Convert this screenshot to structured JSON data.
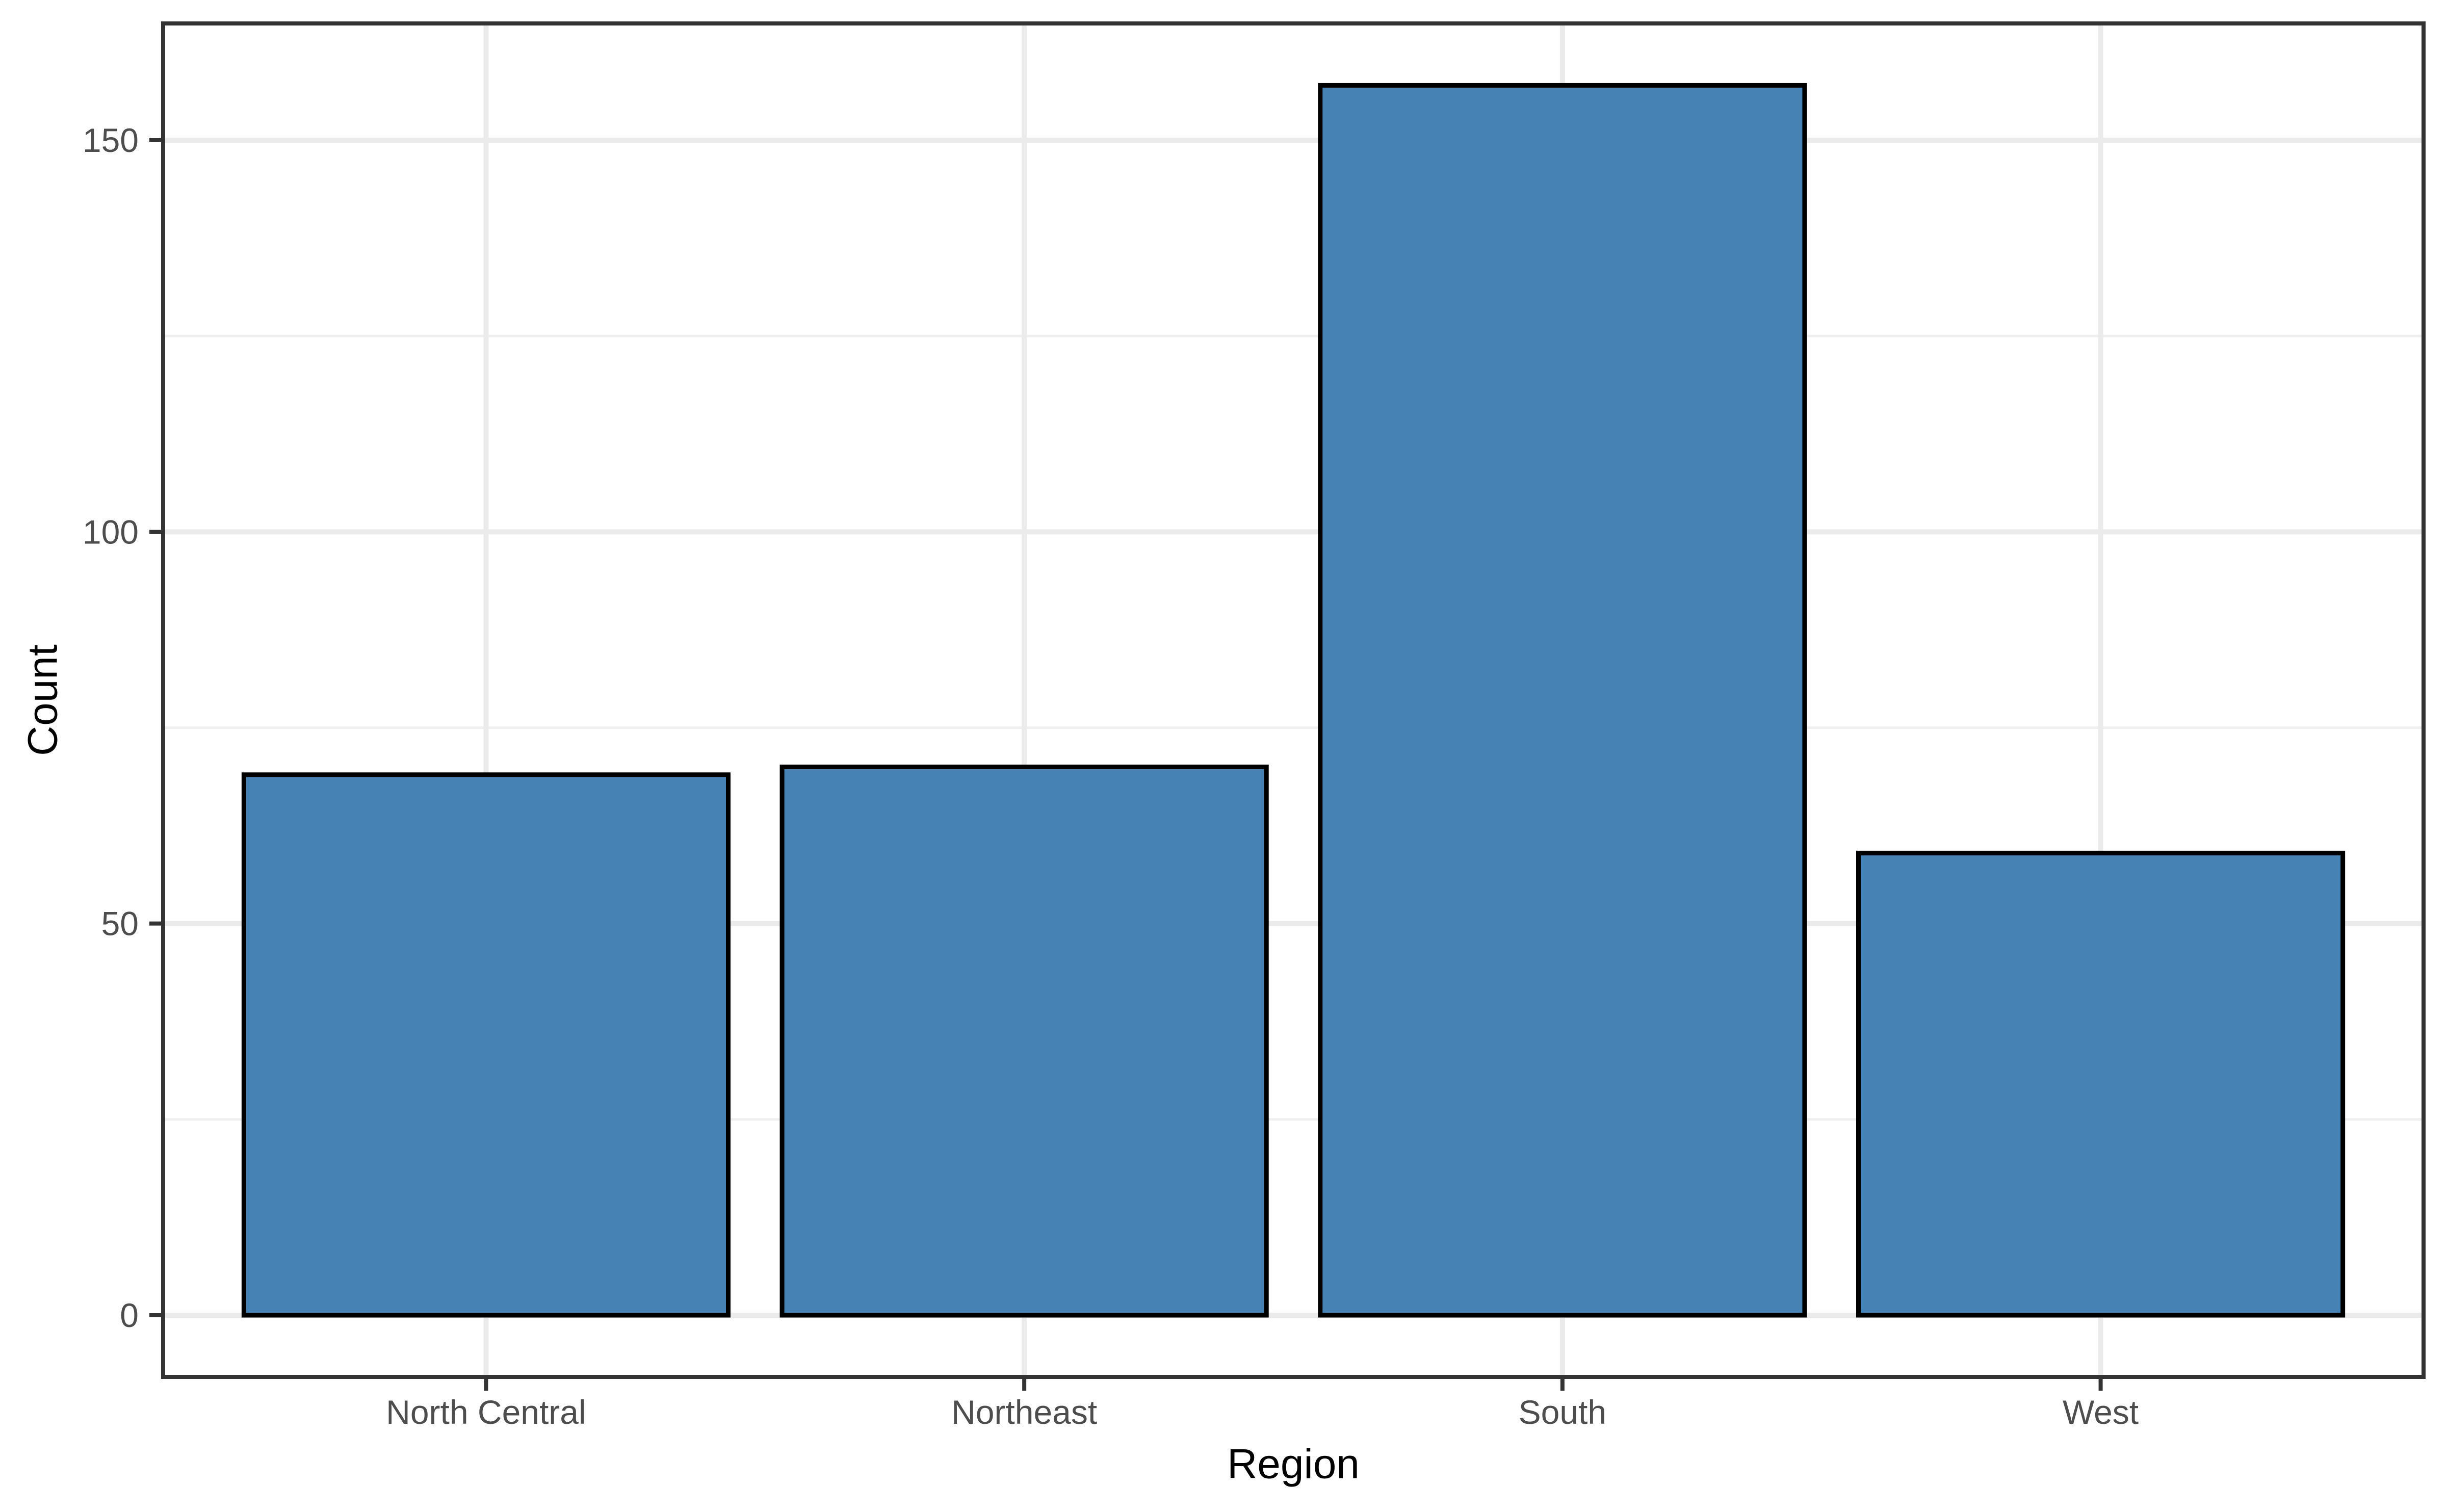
{
  "chart_data": {
    "type": "bar",
    "title": "",
    "xlabel": "Region",
    "ylabel": "Count",
    "categories": [
      "North Central",
      "Northeast",
      "South",
      "West"
    ],
    "values": [
      69,
      70,
      157,
      59
    ],
    "yticks": [
      0,
      50,
      100,
      150
    ],
    "y_minor_ticks": [
      25,
      75,
      125
    ],
    "y_axis_range": [
      -8.2,
      164.9
    ],
    "grid": true,
    "legend": "none",
    "colors": {
      "bar_fill": "#4682B4",
      "bar_stroke": "#000000",
      "grid_major": "#EBEBEB",
      "grid_minor": "#EFEFEF",
      "panel_border": "#333333",
      "tick_mark": "#333333",
      "tick_label": "#4D4D4D",
      "axis_title": "#000000",
      "background": "#FFFFFF"
    }
  }
}
